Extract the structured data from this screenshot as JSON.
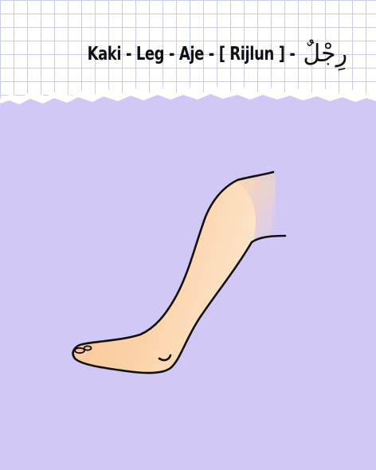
{
  "title": {
    "latin": "Kaki - Leg - Aje - [ Rijlun ] -",
    "arabic": "رِجْلٌ"
  },
  "colors": {
    "background_purple": "#d2c8f5",
    "grid_line": "#c7cdea",
    "skin": "#f9cc9d",
    "skin_light": "#fde4c8",
    "outline": "#111111"
  },
  "illustration": {
    "subject": "leg-and-foot"
  }
}
